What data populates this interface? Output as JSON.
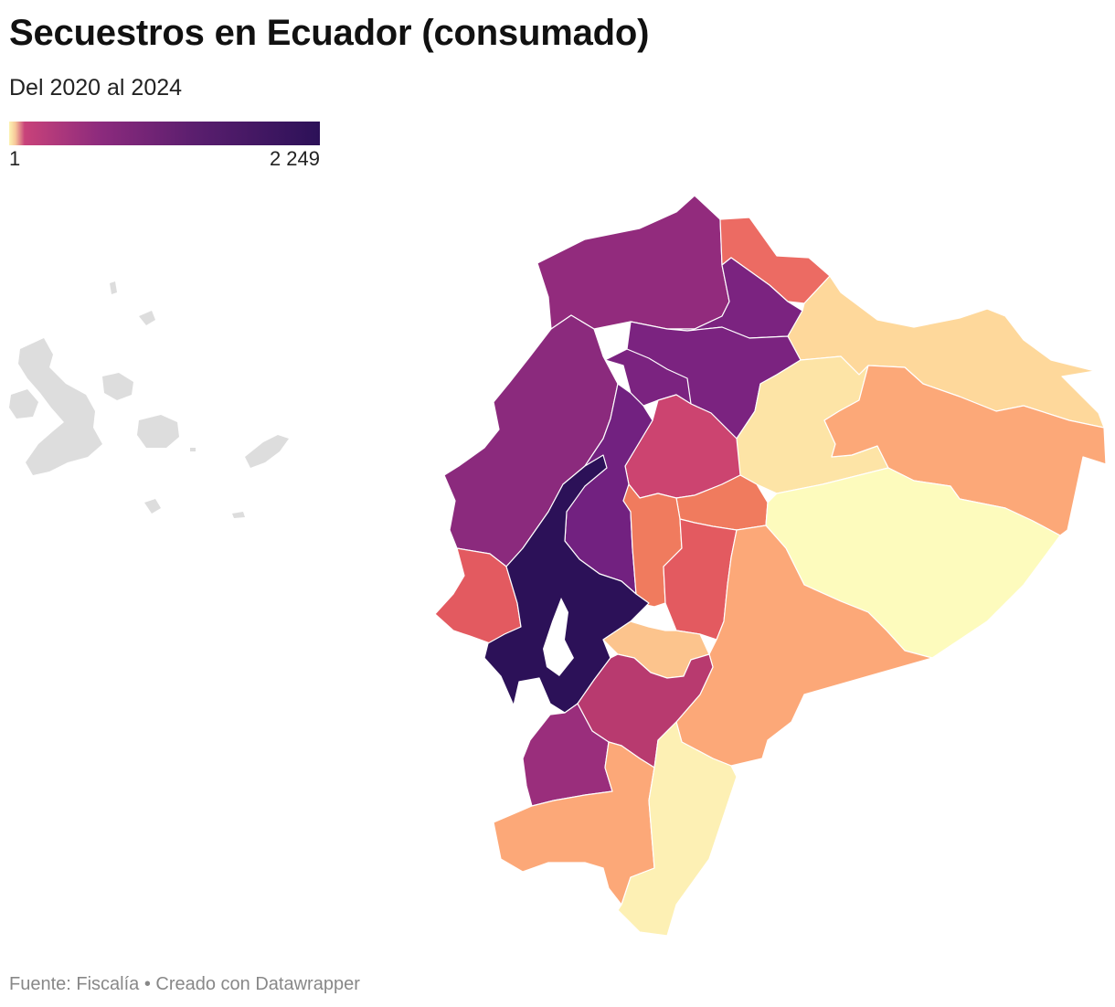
{
  "header": {
    "title": "Secuestros en Ecuador (consumado)",
    "subtitle": "Del 2020 al 2024"
  },
  "legend": {
    "min_label": "1",
    "max_label": "2 249",
    "scale_colors": [
      "#fcf4b4",
      "#f7c89a",
      "#c8427a",
      "#8b2a7d",
      "#5a1e6e",
      "#2c1158"
    ]
  },
  "map": {
    "regions": [
      {
        "id": "esmeraldas",
        "color": "#922b7d"
      },
      {
        "id": "carchi",
        "color": "#ec6b63"
      },
      {
        "id": "imbabura",
        "color": "#7b2380"
      },
      {
        "id": "sucumbios",
        "color": "#fed89b"
      },
      {
        "id": "pichincha",
        "color": "#7b2380"
      },
      {
        "id": "santo-domingo",
        "color": "#7b2380"
      },
      {
        "id": "manabi",
        "color": "#8b2a7d"
      },
      {
        "id": "napo",
        "color": "#fde4a6"
      },
      {
        "id": "orellana",
        "color": "#fca878"
      },
      {
        "id": "cotopaxi",
        "color": "#cc4470"
      },
      {
        "id": "los-rios",
        "color": "#722180"
      },
      {
        "id": "tungurahua",
        "color": "#f07b5e"
      },
      {
        "id": "bolivar",
        "color": "#f07b5e"
      },
      {
        "id": "pastaza",
        "color": "#fdfbbd"
      },
      {
        "id": "chimborazo",
        "color": "#e35a60"
      },
      {
        "id": "santa-elena",
        "color": "#e35a60"
      },
      {
        "id": "guayas",
        "color": "#2c1158"
      },
      {
        "id": "canar",
        "color": "#fcc48d"
      },
      {
        "id": "morona-santiago",
        "color": "#fca878"
      },
      {
        "id": "azuay",
        "color": "#b83a6f"
      },
      {
        "id": "el-oro",
        "color": "#9a2e7c"
      },
      {
        "id": "loja",
        "color": "#fca878"
      },
      {
        "id": "zamora-chinchipe",
        "color": "#fdf0b4"
      }
    ]
  },
  "footer": {
    "source": "Fuente: Fiscalía • Creado con Datawrapper"
  }
}
